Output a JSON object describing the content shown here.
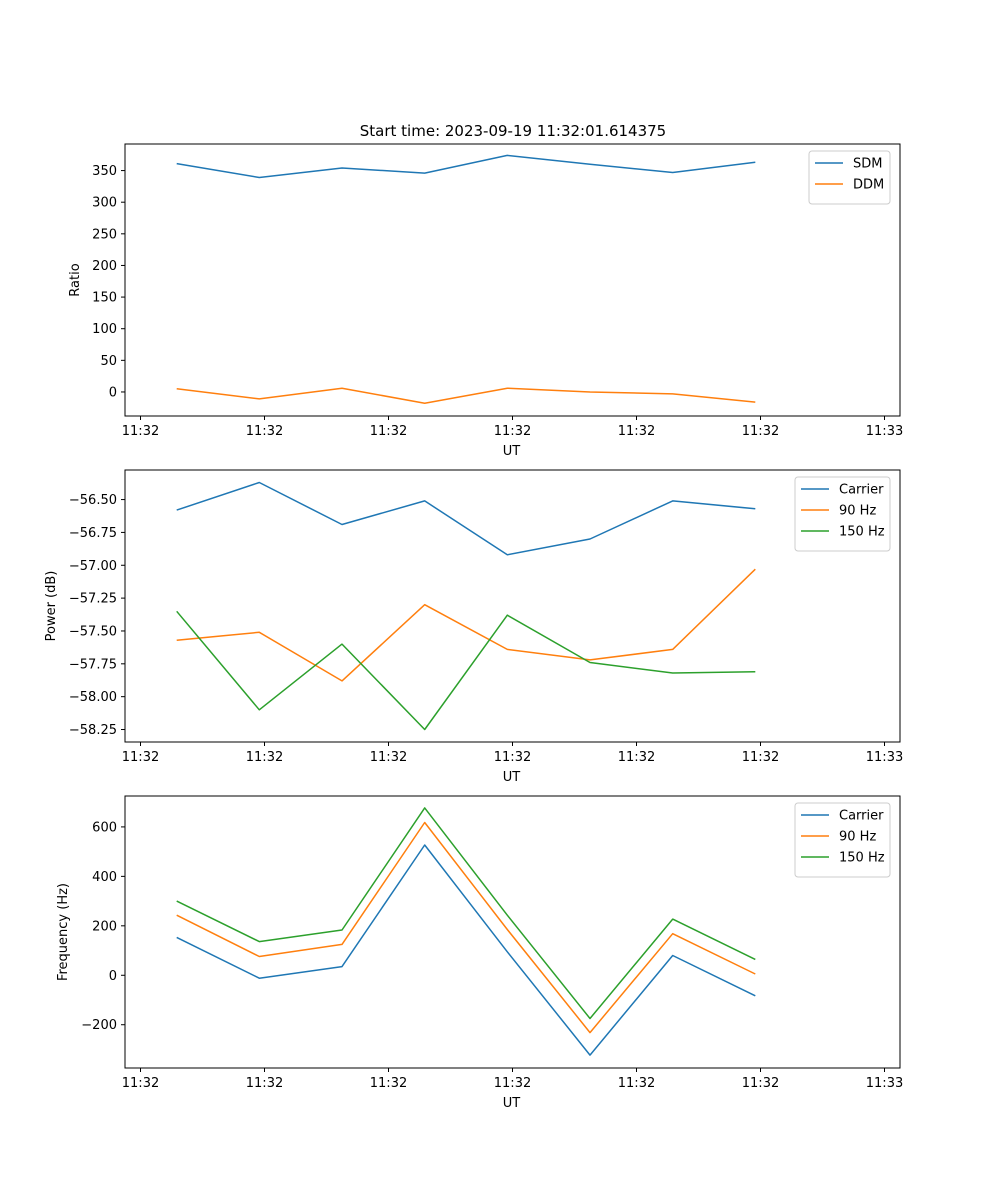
{
  "figure_title": "Start time: 2023-09-19 11:32:01.614375",
  "colors": {
    "blue": "#1f77b4",
    "orange": "#ff7f0e",
    "green": "#2ca02c"
  },
  "chart_data": [
    {
      "type": "line",
      "title": "Start time: 2023-09-19 11:32:01.614375",
      "xlabel": "UT",
      "ylabel": "Ratio",
      "x": [
        0.5,
        1.3,
        2.1,
        2.9,
        3.7,
        4.5,
        5.3,
        6.1
      ],
      "xlim": [
        0.0,
        7.5
      ],
      "xticks": [
        0.15,
        1.35,
        2.55,
        3.75,
        4.95,
        6.15,
        7.35
      ],
      "xtick_labels": [
        "11:32",
        "11:32",
        "11:32",
        "11:32",
        "11:32",
        "11:32",
        "11:33"
      ],
      "ylim": [
        -38,
        392
      ],
      "yticks": [
        0,
        50,
        100,
        150,
        200,
        250,
        300,
        350
      ],
      "ytick_labels": [
        "0",
        "50",
        "100",
        "150",
        "200",
        "250",
        "300",
        "350"
      ],
      "grid": false,
      "legend_position": "upper-right",
      "series": [
        {
          "name": "SDM",
          "color": "#1f77b4",
          "values": [
            361,
            339,
            354,
            346,
            374,
            360,
            347,
            363
          ]
        },
        {
          "name": "DDM",
          "color": "#ff7f0e",
          "values": [
            5,
            -11,
            6,
            -18,
            6,
            0,
            -3,
            -16
          ]
        }
      ]
    },
    {
      "type": "line",
      "title": "",
      "xlabel": "UT",
      "ylabel": "Power (dB)",
      "x": [
        0.5,
        1.3,
        2.1,
        2.9,
        3.7,
        4.5,
        5.3,
        6.1
      ],
      "xlim": [
        0.0,
        7.5
      ],
      "xticks": [
        0.15,
        1.35,
        2.55,
        3.75,
        4.95,
        6.15,
        7.35
      ],
      "xtick_labels": [
        "11:32",
        "11:32",
        "11:32",
        "11:32",
        "11:32",
        "11:32",
        "11:33"
      ],
      "ylim": [
        -58.345,
        -56.275
      ],
      "yticks": [
        -58.25,
        -58.0,
        -57.75,
        -57.5,
        -57.25,
        -57.0,
        -56.75,
        -56.5
      ],
      "ytick_labels": [
        "−58.25",
        "−58.00",
        "−57.75",
        "−57.50",
        "−57.25",
        "−57.00",
        "−56.75",
        "−56.50"
      ],
      "grid": false,
      "legend_position": "upper-right",
      "series": [
        {
          "name": "Carrier",
          "color": "#1f77b4",
          "values": [
            -56.58,
            -56.37,
            -56.69,
            -56.51,
            -56.92,
            -56.8,
            -56.51,
            -56.57
          ]
        },
        {
          "name": "90 Hz",
          "color": "#ff7f0e",
          "values": [
            -57.57,
            -57.51,
            -57.88,
            -57.3,
            -57.64,
            -57.72,
            -57.64,
            -57.03
          ]
        },
        {
          "name": "150 Hz",
          "color": "#2ca02c",
          "values": [
            -57.35,
            -58.1,
            -57.6,
            -58.25,
            -57.38,
            -57.74,
            -57.82,
            -57.81
          ]
        }
      ]
    },
    {
      "type": "line",
      "title": "",
      "xlabel": "UT",
      "ylabel": "Frequency (Hz)",
      "x": [
        0.5,
        1.3,
        2.1,
        2.9,
        3.7,
        4.5,
        5.3,
        6.1
      ],
      "xlim": [
        0.0,
        7.5
      ],
      "xticks": [
        0.15,
        1.35,
        2.55,
        3.75,
        4.95,
        6.15,
        7.35
      ],
      "xtick_labels": [
        "11:32",
        "11:32",
        "11:32",
        "11:32",
        "11:32",
        "11:32",
        "11:33"
      ],
      "ylim": [
        -375,
        725
      ],
      "yticks": [
        -200,
        0,
        200,
        400,
        600
      ],
      "ytick_labels": [
        "−200",
        "0",
        "200",
        "400",
        "600"
      ],
      "grid": false,
      "legend_position": "upper-right",
      "series": [
        {
          "name": "Carrier",
          "color": "#1f77b4",
          "values": [
            153,
            -12,
            35,
            527,
            95,
            -323,
            80,
            -83
          ]
        },
        {
          "name": "90 Hz",
          "color": "#ff7f0e",
          "values": [
            243,
            76,
            125,
            618,
            185,
            -232,
            168,
            5
          ]
        },
        {
          "name": "150 Hz",
          "color": "#2ca02c",
          "values": [
            300,
            136,
            183,
            677,
            243,
            -175,
            227,
            64
          ]
        }
      ]
    }
  ]
}
